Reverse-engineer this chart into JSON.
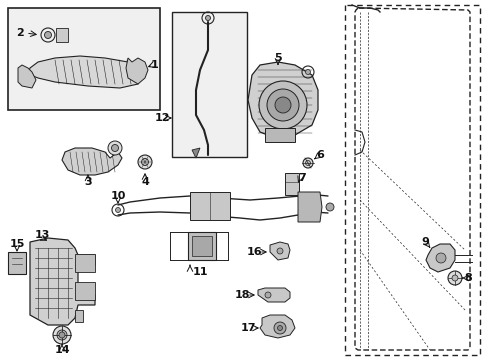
{
  "bg_color": "#ffffff",
  "line_color": "#222222",
  "label_color": "#111111",
  "fig_width": 4.89,
  "fig_height": 3.6,
  "dpi": 100,
  "xlim": [
    0,
    489
  ],
  "ylim": [
    0,
    360
  ]
}
